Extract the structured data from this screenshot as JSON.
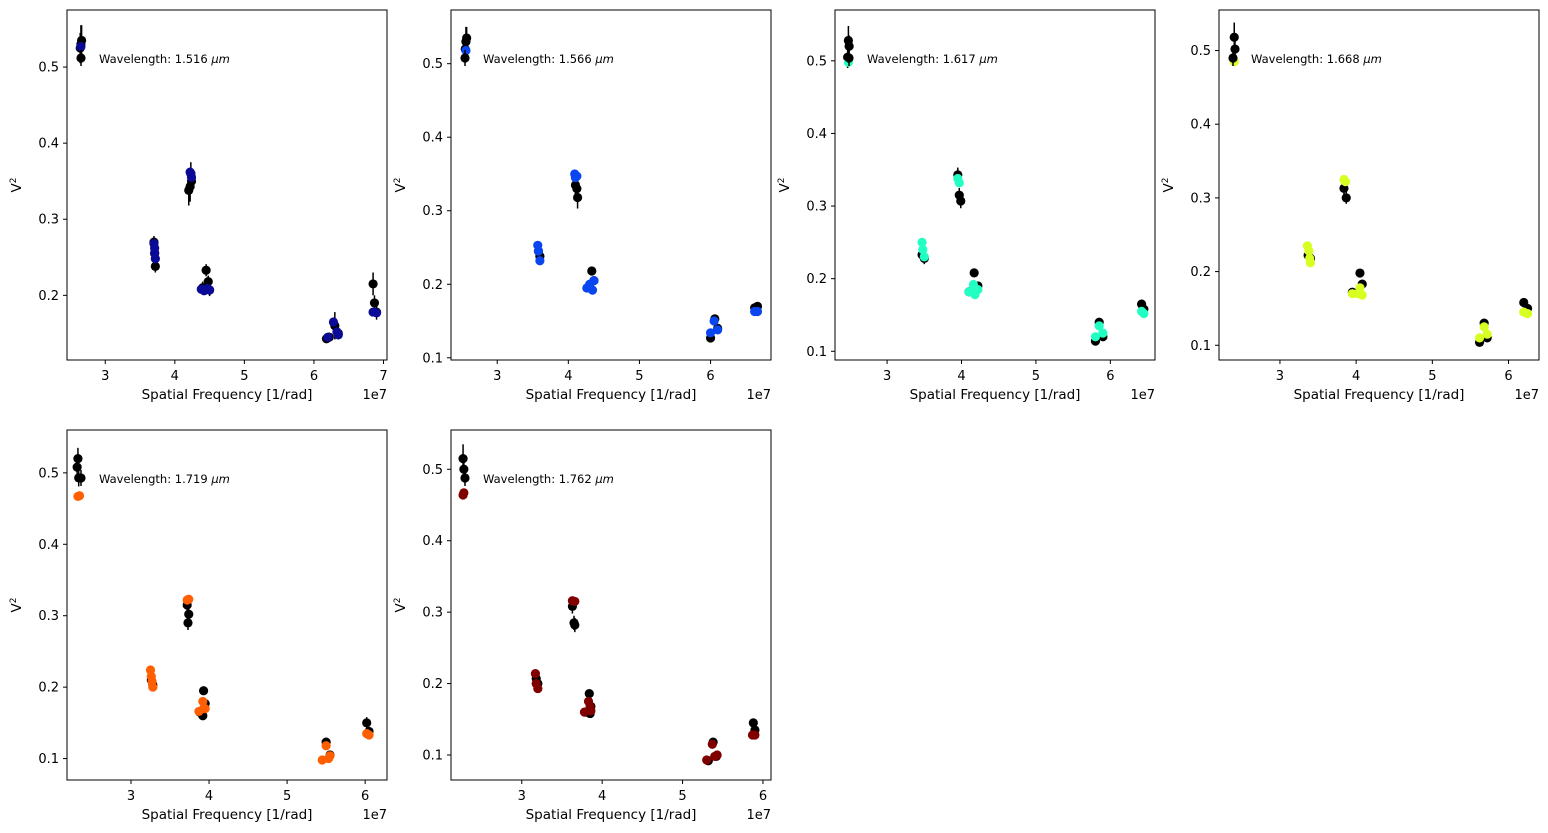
{
  "figure": {
    "xlabel": "Spatial Frequency [1/rad]",
    "ylabel_base": "V",
    "ylabel_sup": "2",
    "x_multiplier_label": "1e7",
    "legend_prefix": "Wavelength: ",
    "legend_unit": "μm",
    "observed_color": "#000000"
  },
  "chart_data": [
    {
      "type": "scatter",
      "wavelength": "1.516",
      "model_color": "#0a0a96",
      "xlim": [
        2.45,
        7.05
      ],
      "ylim": [
        0.115,
        0.575
      ],
      "xticks": [
        3,
        4,
        5,
        6,
        7
      ],
      "yticks": [
        0.2,
        0.3,
        0.4,
        0.5
      ],
      "x_scale": "1e7",
      "observed": [
        {
          "x": 2.65,
          "y": 0.53,
          "err": 0.025
        },
        {
          "x": 2.66,
          "y": 0.535,
          "err": 0.02
        },
        {
          "x": 2.64,
          "y": 0.525,
          "err": 0.02
        },
        {
          "x": 4.2,
          "y": 0.338,
          "err": 0.02
        },
        {
          "x": 4.22,
          "y": 0.343,
          "err": 0.02
        },
        {
          "x": 4.23,
          "y": 0.36,
          "err": 0.015
        },
        {
          "x": 4.24,
          "y": 0.35,
          "err": 0.015
        },
        {
          "x": 3.7,
          "y": 0.27,
          "err": 0.008
        },
        {
          "x": 3.71,
          "y": 0.255,
          "err": 0.008
        },
        {
          "x": 3.72,
          "y": 0.238,
          "err": 0.008
        },
        {
          "x": 4.4,
          "y": 0.21,
          "err": 0.008
        },
        {
          "x": 4.45,
          "y": 0.233,
          "err": 0.008
        },
        {
          "x": 4.48,
          "y": 0.218,
          "err": 0.008
        },
        {
          "x": 4.5,
          "y": 0.207,
          "err": 0.008
        },
        {
          "x": 6.18,
          "y": 0.143,
          "err": 0.006
        },
        {
          "x": 6.22,
          "y": 0.145,
          "err": 0.006
        },
        {
          "x": 6.3,
          "y": 0.16,
          "err": 0.018
        },
        {
          "x": 6.35,
          "y": 0.15,
          "err": 0.008
        },
        {
          "x": 6.85,
          "y": 0.215,
          "err": 0.015
        },
        {
          "x": 6.87,
          "y": 0.19,
          "err": 0.01
        },
        {
          "x": 6.9,
          "y": 0.178,
          "err": 0.01
        }
      ],
      "model": [
        [
          2.65,
          0.527
        ],
        [
          4.22,
          0.362
        ],
        [
          4.23,
          0.36
        ],
        [
          4.24,
          0.355
        ],
        [
          3.7,
          0.268
        ],
        [
          3.71,
          0.262
        ],
        [
          3.71,
          0.256
        ],
        [
          3.72,
          0.248
        ],
        [
          4.38,
          0.208
        ],
        [
          4.42,
          0.206
        ],
        [
          4.47,
          0.209
        ],
        [
          4.5,
          0.207
        ],
        [
          6.2,
          0.145
        ],
        [
          6.28,
          0.165
        ],
        [
          6.33,
          0.152
        ],
        [
          6.35,
          0.148
        ],
        [
          6.85,
          0.178
        ],
        [
          6.9,
          0.177
        ]
      ]
    },
    {
      "type": "scatter",
      "wavelength": "1.566",
      "model_color": "#0a46f0",
      "xlim": [
        2.35,
        6.85
      ],
      "ylim": [
        0.097,
        0.573
      ],
      "xticks": [
        3,
        4,
        5,
        6
      ],
      "yticks": [
        0.1,
        0.2,
        0.3,
        0.4,
        0.5
      ],
      "x_scale": "1e7",
      "observed": [
        {
          "x": 2.56,
          "y": 0.53,
          "err": 0.02
        },
        {
          "x": 2.57,
          "y": 0.535,
          "err": 0.015
        },
        {
          "x": 2.55,
          "y": 0.52,
          "err": 0.015
        },
        {
          "x": 4.1,
          "y": 0.335,
          "err": 0.015
        },
        {
          "x": 4.12,
          "y": 0.33,
          "err": 0.015
        },
        {
          "x": 4.13,
          "y": 0.318,
          "err": 0.015
        },
        {
          "x": 3.58,
          "y": 0.245,
          "err": 0.008
        },
        {
          "x": 3.6,
          "y": 0.238,
          "err": 0.008
        },
        {
          "x": 4.3,
          "y": 0.195,
          "err": 0.006
        },
        {
          "x": 4.33,
          "y": 0.218,
          "err": 0.006
        },
        {
          "x": 4.36,
          "y": 0.205,
          "err": 0.006
        },
        {
          "x": 6.0,
          "y": 0.127,
          "err": 0.005
        },
        {
          "x": 6.06,
          "y": 0.153,
          "err": 0.005
        },
        {
          "x": 6.1,
          "y": 0.14,
          "err": 0.005
        },
        {
          "x": 6.62,
          "y": 0.168,
          "err": 0.004
        },
        {
          "x": 6.66,
          "y": 0.17,
          "err": 0.004
        }
      ],
      "model": [
        [
          2.56,
          0.518
        ],
        [
          4.09,
          0.35
        ],
        [
          4.1,
          0.345
        ],
        [
          4.12,
          0.347
        ],
        [
          3.57,
          0.253
        ],
        [
          3.58,
          0.245
        ],
        [
          3.6,
          0.232
        ],
        [
          4.26,
          0.195
        ],
        [
          4.3,
          0.2
        ],
        [
          4.34,
          0.192
        ],
        [
          4.36,
          0.205
        ],
        [
          6.0,
          0.134
        ],
        [
          6.05,
          0.15
        ],
        [
          6.1,
          0.138
        ],
        [
          6.62,
          0.163
        ],
        [
          6.66,
          0.163
        ]
      ]
    },
    {
      "type": "scatter",
      "wavelength": "1.617",
      "model_color": "#22ffc2",
      "xlim": [
        2.3,
        6.6
      ],
      "ylim": [
        0.088,
        0.57
      ],
      "xticks": [
        3,
        4,
        5,
        6
      ],
      "yticks": [
        0.1,
        0.2,
        0.3,
        0.4,
        0.5
      ],
      "x_scale": "1e7",
      "observed": [
        {
          "x": 2.48,
          "y": 0.528,
          "err": 0.02
        },
        {
          "x": 2.49,
          "y": 0.52,
          "err": 0.015
        },
        {
          "x": 2.47,
          "y": 0.505,
          "err": 0.015
        },
        {
          "x": 3.95,
          "y": 0.343,
          "err": 0.01
        },
        {
          "x": 3.97,
          "y": 0.315,
          "err": 0.01
        },
        {
          "x": 3.99,
          "y": 0.307,
          "err": 0.01
        },
        {
          "x": 3.47,
          "y": 0.233,
          "err": 0.008
        },
        {
          "x": 3.5,
          "y": 0.228,
          "err": 0.008
        },
        {
          "x": 4.1,
          "y": 0.182,
          "err": 0.005
        },
        {
          "x": 4.17,
          "y": 0.208,
          "err": 0.006
        },
        {
          "x": 4.22,
          "y": 0.19,
          "err": 0.005
        },
        {
          "x": 5.8,
          "y": 0.114,
          "err": 0.004
        },
        {
          "x": 5.85,
          "y": 0.14,
          "err": 0.005
        },
        {
          "x": 5.9,
          "y": 0.12,
          "err": 0.004
        },
        {
          "x": 6.42,
          "y": 0.165,
          "err": 0.006
        },
        {
          "x": 6.45,
          "y": 0.158,
          "err": 0.008
        }
      ],
      "model": [
        [
          2.48,
          0.498
        ],
        [
          3.95,
          0.338
        ],
        [
          3.97,
          0.332
        ],
        [
          3.47,
          0.25
        ],
        [
          3.48,
          0.24
        ],
        [
          3.5,
          0.23
        ],
        [
          4.1,
          0.182
        ],
        [
          4.16,
          0.192
        ],
        [
          4.18,
          0.178
        ],
        [
          4.22,
          0.185
        ],
        [
          5.8,
          0.12
        ],
        [
          5.85,
          0.135
        ],
        [
          5.9,
          0.125
        ],
        [
          6.42,
          0.155
        ],
        [
          6.45,
          0.152
        ]
      ]
    },
    {
      "type": "scatter",
      "wavelength": "1.668",
      "model_color": "#d7ff22",
      "xlim": [
        2.2,
        6.4
      ],
      "ylim": [
        0.08,
        0.555
      ],
      "xticks": [
        3,
        4,
        5,
        6
      ],
      "yticks": [
        0.1,
        0.2,
        0.3,
        0.4,
        0.5
      ],
      "x_scale": "1e7",
      "observed": [
        {
          "x": 2.4,
          "y": 0.518,
          "err": 0.02
        },
        {
          "x": 2.41,
          "y": 0.502,
          "err": 0.015
        },
        {
          "x": 3.84,
          "y": 0.313,
          "err": 0.01
        },
        {
          "x": 3.87,
          "y": 0.3,
          "err": 0.008
        },
        {
          "x": 3.37,
          "y": 0.222,
          "err": 0.006
        },
        {
          "x": 3.4,
          "y": 0.218,
          "err": 0.006
        },
        {
          "x": 3.95,
          "y": 0.172,
          "err": 0.005
        },
        {
          "x": 4.05,
          "y": 0.198,
          "err": 0.005
        },
        {
          "x": 4.08,
          "y": 0.183,
          "err": 0.005
        },
        {
          "x": 5.62,
          "y": 0.104,
          "err": 0.004
        },
        {
          "x": 5.68,
          "y": 0.13,
          "err": 0.005
        },
        {
          "x": 5.72,
          "y": 0.11,
          "err": 0.004
        },
        {
          "x": 6.2,
          "y": 0.158,
          "err": 0.005
        },
        {
          "x": 6.25,
          "y": 0.15,
          "err": 0.005
        }
      ],
      "model": [
        [
          2.4,
          0.485
        ],
        [
          3.84,
          0.325
        ],
        [
          3.86,
          0.322
        ],
        [
          3.36,
          0.235
        ],
        [
          3.38,
          0.228
        ],
        [
          3.39,
          0.218
        ],
        [
          3.4,
          0.212
        ],
        [
          3.95,
          0.17
        ],
        [
          4.02,
          0.17
        ],
        [
          4.05,
          0.178
        ],
        [
          4.08,
          0.168
        ],
        [
          5.62,
          0.11
        ],
        [
          5.68,
          0.125
        ],
        [
          5.72,
          0.115
        ],
        [
          6.2,
          0.145
        ],
        [
          6.25,
          0.143
        ]
      ]
    },
    {
      "type": "scatter",
      "wavelength": "1.719",
      "model_color": "#ff5f00",
      "xlim": [
        2.18,
        6.28
      ],
      "ylim": [
        0.07,
        0.56
      ],
      "xticks": [
        3,
        4,
        5,
        6
      ],
      "yticks": [
        0.1,
        0.2,
        0.3,
        0.4,
        0.5
      ],
      "x_scale": "1e7",
      "observed": [
        {
          "x": 2.32,
          "y": 0.52,
          "err": 0.015
        },
        {
          "x": 2.31,
          "y": 0.508,
          "err": 0.012
        },
        {
          "x": 2.33,
          "y": 0.493,
          "err": 0.012
        },
        {
          "x": 3.72,
          "y": 0.315,
          "err": 0.01
        },
        {
          "x": 3.74,
          "y": 0.302,
          "err": 0.01
        },
        {
          "x": 3.73,
          "y": 0.29,
          "err": 0.01
        },
        {
          "x": 3.26,
          "y": 0.21,
          "err": 0.006
        },
        {
          "x": 3.28,
          "y": 0.203,
          "err": 0.006
        },
        {
          "x": 3.88,
          "y": 0.165,
          "err": 0.005
        },
        {
          "x": 3.93,
          "y": 0.195,
          "err": 0.005
        },
        {
          "x": 3.95,
          "y": 0.177,
          "err": 0.005
        },
        {
          "x": 3.92,
          "y": 0.16,
          "err": 0.005
        },
        {
          "x": 5.5,
          "y": 0.123,
          "err": 0.004
        },
        {
          "x": 5.55,
          "y": 0.105,
          "err": 0.004
        },
        {
          "x": 6.02,
          "y": 0.15,
          "err": 0.008
        },
        {
          "x": 6.05,
          "y": 0.138,
          "err": 0.006
        }
      ],
      "model": [
        [
          2.32,
          0.467
        ],
        [
          2.34,
          0.468
        ],
        [
          3.72,
          0.322
        ],
        [
          3.74,
          0.323
        ],
        [
          3.25,
          0.224
        ],
        [
          3.26,
          0.215
        ],
        [
          3.27,
          0.208
        ],
        [
          3.28,
          0.2
        ],
        [
          3.87,
          0.166
        ],
        [
          3.92,
          0.18
        ],
        [
          3.93,
          0.17
        ],
        [
          3.95,
          0.17
        ],
        [
          5.45,
          0.098
        ],
        [
          5.5,
          0.118
        ],
        [
          5.53,
          0.1
        ],
        [
          5.55,
          0.104
        ],
        [
          6.02,
          0.135
        ],
        [
          6.05,
          0.133
        ]
      ]
    },
    {
      "type": "scatter",
      "wavelength": "1.762",
      "model_color": "#800000",
      "xlim": [
        2.12,
        6.1
      ],
      "ylim": [
        0.065,
        0.555
      ],
      "xticks": [
        3,
        4,
        5,
        6
      ],
      "yticks": [
        0.1,
        0.2,
        0.3,
        0.4,
        0.5
      ],
      "x_scale": "1e7",
      "observed": [
        {
          "x": 2.27,
          "y": 0.515,
          "err": 0.02
        },
        {
          "x": 2.28,
          "y": 0.5,
          "err": 0.015
        },
        {
          "x": 3.63,
          "y": 0.308,
          "err": 0.01
        },
        {
          "x": 3.65,
          "y": 0.285,
          "err": 0.01
        },
        {
          "x": 3.66,
          "y": 0.282,
          "err": 0.01
        },
        {
          "x": 3.18,
          "y": 0.207,
          "err": 0.006
        },
        {
          "x": 3.2,
          "y": 0.2,
          "err": 0.006
        },
        {
          "x": 3.8,
          "y": 0.16,
          "err": 0.005
        },
        {
          "x": 3.84,
          "y": 0.186,
          "err": 0.005
        },
        {
          "x": 3.86,
          "y": 0.168,
          "err": 0.005
        },
        {
          "x": 3.85,
          "y": 0.158,
          "err": 0.005
        },
        {
          "x": 5.32,
          "y": 0.092,
          "err": 0.004
        },
        {
          "x": 5.38,
          "y": 0.118,
          "err": 0.005
        },
        {
          "x": 5.42,
          "y": 0.098,
          "err": 0.004
        },
        {
          "x": 5.88,
          "y": 0.145,
          "err": 0.004
        },
        {
          "x": 5.9,
          "y": 0.135,
          "err": 0.005
        }
      ],
      "model": [
        [
          2.27,
          0.464
        ],
        [
          2.28,
          0.467
        ],
        [
          3.63,
          0.316
        ],
        [
          3.66,
          0.315
        ],
        [
          3.17,
          0.214
        ],
        [
          3.18,
          0.2
        ],
        [
          3.2,
          0.193
        ],
        [
          3.78,
          0.16
        ],
        [
          3.83,
          0.175
        ],
        [
          3.85,
          0.168
        ],
        [
          3.86,
          0.162
        ],
        [
          5.3,
          0.093
        ],
        [
          5.37,
          0.115
        ],
        [
          5.4,
          0.098
        ],
        [
          5.43,
          0.1
        ],
        [
          5.87,
          0.128
        ],
        [
          5.9,
          0.128
        ]
      ]
    }
  ]
}
